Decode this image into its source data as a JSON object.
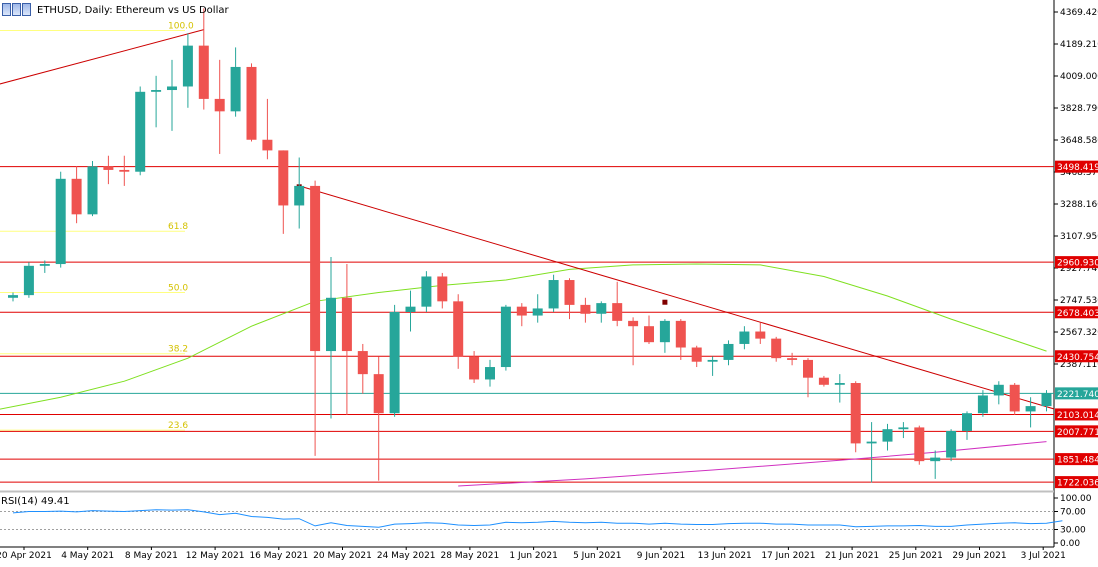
{
  "header": {
    "symbol": "ETHUSD",
    "timeframe": "Daily",
    "description": "Ethereum vs US Dollar",
    "title_text": "ETHUSD, Daily:  Ethereum vs US Dollar"
  },
  "colors": {
    "bull": "#26a69a",
    "bear": "#ef5350",
    "level_line": "#e00000",
    "level_label_bg": "#e00000",
    "current_price_line": "#26a69a",
    "fib_line": "#ffff80",
    "fib_text": "#d4c200",
    "ma_fast": "#7fe020",
    "ma_slow": "#d030c0",
    "rsi": "#1e90ff",
    "trendline": "#cc0000",
    "axis_text": "#000000",
    "panel_separator": "#c0c0c0"
  },
  "chart_data": [
    {
      "type": "candlestick",
      "title": "ETHUSD, Daily:  Ethereum vs US Dollar",
      "y_axis_ticks": [
        "4369.420",
        "4189.210",
        "4009.000",
        "3828.790",
        "3648.580",
        "3468.370",
        "3288.160",
        "3107.950",
        "2927.740",
        "2747.530",
        "2567.320",
        "2387.110"
      ],
      "x_axis_ticks": [
        "20 Apr 2021",
        "4 May 2021",
        "8 May 2021",
        "12 May 2021",
        "16 May 2021",
        "20 May 2021",
        "24 May 2021",
        "28 May 2021",
        "1 Jun 2021",
        "5 Jun 2021",
        "9 Jun 2021",
        "13 Jun 2021",
        "17 Jun 2021",
        "21 Jun 2021",
        "25 Jun 2021",
        "29 Jun 2021",
        "3 Jul 2021"
      ],
      "ylim": [
        1700,
        4400
      ],
      "x_start": "2021-04-29",
      "candles": [
        {
          "date": "2021-04-29",
          "open": 2760,
          "high": 2790,
          "low": 2740,
          "close": 2775
        },
        {
          "date": "2021-04-30",
          "open": 2775,
          "high": 2960,
          "low": 2760,
          "close": 2940
        },
        {
          "date": "2021-05-01",
          "open": 2940,
          "high": 2970,
          "low": 2900,
          "close": 2950
        },
        {
          "date": "2021-05-02",
          "open": 2950,
          "high": 3470,
          "low": 2930,
          "close": 3430
        },
        {
          "date": "2021-05-03",
          "open": 3430,
          "high": 3500,
          "low": 3180,
          "close": 3230
        },
        {
          "date": "2021-05-04",
          "open": 3230,
          "high": 3530,
          "low": 3220,
          "close": 3500
        },
        {
          "date": "2021-05-05",
          "open": 3500,
          "high": 3560,
          "low": 3400,
          "close": 3480
        },
        {
          "date": "2021-05-06",
          "open": 3480,
          "high": 3560,
          "low": 3390,
          "close": 3470
        },
        {
          "date": "2021-05-07",
          "open": 3470,
          "high": 3950,
          "low": 3450,
          "close": 3920
        },
        {
          "date": "2021-05-08",
          "open": 3920,
          "high": 4010,
          "low": 3720,
          "close": 3930
        },
        {
          "date": "2021-05-09",
          "open": 3930,
          "high": 4100,
          "low": 3700,
          "close": 3950
        },
        {
          "date": "2021-05-10",
          "open": 3950,
          "high": 4250,
          "low": 3830,
          "close": 4180
        },
        {
          "date": "2021-05-11",
          "open": 4180,
          "high": 4390,
          "low": 3820,
          "close": 3880
        },
        {
          "date": "2021-05-12",
          "open": 3880,
          "high": 4100,
          "low": 3570,
          "close": 3810
        },
        {
          "date": "2021-05-13",
          "open": 3810,
          "high": 4170,
          "low": 3780,
          "close": 4060
        },
        {
          "date": "2021-05-14",
          "open": 4060,
          "high": 4080,
          "low": 3640,
          "close": 3650
        },
        {
          "date": "2021-05-15",
          "open": 3650,
          "high": 3880,
          "low": 3540,
          "close": 3590
        },
        {
          "date": "2021-05-16",
          "open": 3590,
          "high": 3590,
          "low": 3120,
          "close": 3280
        },
        {
          "date": "2021-05-17",
          "open": 3280,
          "high": 3550,
          "low": 3150,
          "close": 3390
        },
        {
          "date": "2021-05-18",
          "open": 3390,
          "high": 3420,
          "low": 1870,
          "close": 2460
        },
        {
          "date": "2021-05-19",
          "open": 2460,
          "high": 2990,
          "low": 2080,
          "close": 2760
        },
        {
          "date": "2021-05-20",
          "open": 2760,
          "high": 2950,
          "low": 2100,
          "close": 2460
        },
        {
          "date": "2021-05-21",
          "open": 2460,
          "high": 2500,
          "low": 2220,
          "close": 2330
        },
        {
          "date": "2021-05-22",
          "open": 2330,
          "high": 2430,
          "low": 1730,
          "close": 2110
        },
        {
          "date": "2021-05-23",
          "open": 2110,
          "high": 2720,
          "low": 2090,
          "close": 2680
        },
        {
          "date": "2021-05-24",
          "open": 2680,
          "high": 2800,
          "low": 2570,
          "close": 2710
        },
        {
          "date": "2021-05-25",
          "open": 2710,
          "high": 2910,
          "low": 2680,
          "close": 2880
        },
        {
          "date": "2021-05-26",
          "open": 2880,
          "high": 2900,
          "low": 2700,
          "close": 2740
        },
        {
          "date": "2021-05-27",
          "open": 2740,
          "high": 2780,
          "low": 2360,
          "close": 2430
        },
        {
          "date": "2021-05-28",
          "open": 2430,
          "high": 2460,
          "low": 2280,
          "close": 2300
        },
        {
          "date": "2021-05-29",
          "open": 2300,
          "high": 2410,
          "low": 2260,
          "close": 2370
        },
        {
          "date": "2021-05-30",
          "open": 2370,
          "high": 2720,
          "low": 2350,
          "close": 2710
        },
        {
          "date": "2021-05-31",
          "open": 2710,
          "high": 2730,
          "low": 2600,
          "close": 2660
        },
        {
          "date": "2021-06-01",
          "open": 2660,
          "high": 2780,
          "low": 2620,
          "close": 2700
        },
        {
          "date": "2021-06-02",
          "open": 2700,
          "high": 2890,
          "low": 2680,
          "close": 2860
        },
        {
          "date": "2021-06-03",
          "open": 2860,
          "high": 2870,
          "low": 2640,
          "close": 2720
        },
        {
          "date": "2021-06-04",
          "open": 2720,
          "high": 2760,
          "low": 2620,
          "close": 2670
        },
        {
          "date": "2021-06-05",
          "open": 2670,
          "high": 2740,
          "low": 2620,
          "close": 2730
        },
        {
          "date": "2021-06-06",
          "open": 2730,
          "high": 2850,
          "low": 2600,
          "close": 2630
        },
        {
          "date": "2021-06-07",
          "open": 2630,
          "high": 2650,
          "low": 2380,
          "close": 2600
        },
        {
          "date": "2021-06-08",
          "open": 2600,
          "high": 2660,
          "low": 2500,
          "close": 2510
        },
        {
          "date": "2021-06-09",
          "open": 2510,
          "high": 2640,
          "low": 2450,
          "close": 2630
        },
        {
          "date": "2021-06-10",
          "open": 2630,
          "high": 2640,
          "low": 2410,
          "close": 2480
        },
        {
          "date": "2021-06-11",
          "open": 2480,
          "high": 2490,
          "low": 2370,
          "close": 2400
        },
        {
          "date": "2021-06-12",
          "open": 2400,
          "high": 2430,
          "low": 2320,
          "close": 2410
        },
        {
          "date": "2021-06-13",
          "open": 2410,
          "high": 2520,
          "low": 2380,
          "close": 2500
        },
        {
          "date": "2021-06-14",
          "open": 2500,
          "high": 2600,
          "low": 2470,
          "close": 2570
        },
        {
          "date": "2021-06-15",
          "open": 2570,
          "high": 2620,
          "low": 2500,
          "close": 2530
        },
        {
          "date": "2021-06-16",
          "open": 2530,
          "high": 2540,
          "low": 2400,
          "close": 2420
        },
        {
          "date": "2021-06-17",
          "open": 2420,
          "high": 2450,
          "low": 2380,
          "close": 2410
        },
        {
          "date": "2021-06-18",
          "open": 2410,
          "high": 2420,
          "low": 2200,
          "close": 2310
        },
        {
          "date": "2021-06-19",
          "open": 2310,
          "high": 2320,
          "low": 2260,
          "close": 2270
        },
        {
          "date": "2021-06-20",
          "open": 2270,
          "high": 2330,
          "low": 2170,
          "close": 2280
        },
        {
          "date": "2021-06-21",
          "open": 2280,
          "high": 2290,
          "low": 1890,
          "close": 1940
        },
        {
          "date": "2021-06-22",
          "open": 1940,
          "high": 2060,
          "low": 1720,
          "close": 1950
        },
        {
          "date": "2021-06-23",
          "open": 1950,
          "high": 2050,
          "low": 1900,
          "close": 2020
        },
        {
          "date": "2021-06-24",
          "open": 2020,
          "high": 2060,
          "low": 1970,
          "close": 2030
        },
        {
          "date": "2021-06-25",
          "open": 2030,
          "high": 2040,
          "low": 1820,
          "close": 1840
        },
        {
          "date": "2021-06-26",
          "open": 1840,
          "high": 1900,
          "low": 1740,
          "close": 1860
        },
        {
          "date": "2021-06-27",
          "open": 1860,
          "high": 2020,
          "low": 1840,
          "close": 2010
        },
        {
          "date": "2021-06-28",
          "open": 2010,
          "high": 2120,
          "low": 1960,
          "close": 2110
        },
        {
          "date": "2021-06-29",
          "open": 2110,
          "high": 2240,
          "low": 2090,
          "close": 2210
        },
        {
          "date": "2021-06-30",
          "open": 2210,
          "high": 2290,
          "low": 2160,
          "close": 2270
        },
        {
          "date": "2021-07-01",
          "open": 2270,
          "high": 2280,
          "low": 2100,
          "close": 2120
        },
        {
          "date": "2021-07-02",
          "open": 2120,
          "high": 2200,
          "low": 2030,
          "close": 2150
        },
        {
          "date": "2021-07-03",
          "open": 2150,
          "high": 2240,
          "low": 2120,
          "close": 2221.74
        }
      ],
      "price_levels": [
        {
          "label": "3498.419",
          "value": 3498.419
        },
        {
          "label": "2960.930",
          "value": 2960.93
        },
        {
          "label": "2678.403",
          "value": 2678.403
        },
        {
          "label": "2430.754",
          "value": 2430.754
        },
        {
          "label": "2103.014",
          "value": 2103.014
        },
        {
          "label": "2007.771",
          "value": 2007.771
        },
        {
          "label": "1851.484",
          "value": 1851.484
        },
        {
          "label": "1722.036",
          "value": 1722.036
        }
      ],
      "current_price": {
        "label": "2221.740",
        "value": 2221.74
      },
      "fibonacci": [
        {
          "label": "100.0",
          "value": 4265
        },
        {
          "label": "61.8",
          "value": 3135
        },
        {
          "label": "50.0",
          "value": 2790
        },
        {
          "label": "38.2",
          "value": 2445
        },
        {
          "label": "23.6",
          "value": 2015
        }
      ],
      "trendlines": [
        {
          "from": {
            "date": "2021-04-28",
            "value": 3960
          },
          "to": {
            "date": "2021-05-11",
            "value": 4270
          }
        },
        {
          "from": {
            "date": "2021-05-17",
            "value": 3390
          },
          "to": {
            "date": "2021-07-04",
            "value": 2120
          }
        }
      ],
      "trendline_markers": [
        {
          "date": "2021-05-17",
          "value": 3385
        },
        {
          "date": "2021-06-09",
          "value": 2735
        }
      ],
      "moving_averages": [
        {
          "color": "#7fe020",
          "points": [
            {
              "date": "2021-04-28",
              "value": 2130
            },
            {
              "date": "2021-05-02",
              "value": 2200
            },
            {
              "date": "2021-05-06",
              "value": 2290
            },
            {
              "date": "2021-05-10",
              "value": 2420
            },
            {
              "date": "2021-05-14",
              "value": 2600
            },
            {
              "date": "2021-05-18",
              "value": 2740
            },
            {
              "date": "2021-05-22",
              "value": 2790
            },
            {
              "date": "2021-05-26",
              "value": 2830
            },
            {
              "date": "2021-05-30",
              "value": 2860
            },
            {
              "date": "2021-06-03",
              "value": 2920
            },
            {
              "date": "2021-06-07",
              "value": 2945
            },
            {
              "date": "2021-06-11",
              "value": 2950
            },
            {
              "date": "2021-06-15",
              "value": 2945
            },
            {
              "date": "2021-06-19",
              "value": 2880
            },
            {
              "date": "2021-06-23",
              "value": 2770
            },
            {
              "date": "2021-06-27",
              "value": 2640
            },
            {
              "date": "2021-07-01",
              "value": 2520
            },
            {
              "date": "2021-07-03",
              "value": 2460
            }
          ]
        },
        {
          "color": "#d030c0",
          "points": [
            {
              "date": "2021-05-27",
              "value": 1700
            },
            {
              "date": "2021-06-04",
              "value": 1740
            },
            {
              "date": "2021-06-12",
              "value": 1790
            },
            {
              "date": "2021-06-20",
              "value": 1845
            },
            {
              "date": "2021-06-26",
              "value": 1890
            },
            {
              "date": "2021-07-03",
              "value": 1950
            }
          ]
        }
      ]
    },
    {
      "type": "line",
      "label": "RSI(14) 49.41",
      "indicator": "RSI",
      "period": 14,
      "last_value": 49.41,
      "y_axis_ticks": [
        "100.00",
        "70.00",
        "30.00",
        "0.00"
      ],
      "levels": [
        70,
        30
      ],
      "ylim": [
        0,
        100
      ],
      "values": [
        67,
        70,
        70,
        71,
        69,
        72,
        71,
        70,
        72,
        74,
        73,
        74,
        69,
        63,
        66,
        59,
        57,
        53,
        54,
        38,
        45,
        39,
        37,
        35,
        42,
        43,
        45,
        44,
        40,
        39,
        40,
        46,
        45,
        46,
        48,
        46,
        45,
        46,
        44,
        44,
        42,
        44,
        42,
        41,
        41,
        43,
        44,
        44,
        42,
        42,
        40,
        40,
        40,
        36,
        37,
        38,
        38,
        39,
        37,
        37,
        40,
        42,
        44,
        45,
        43,
        44,
        49.41
      ]
    }
  ]
}
